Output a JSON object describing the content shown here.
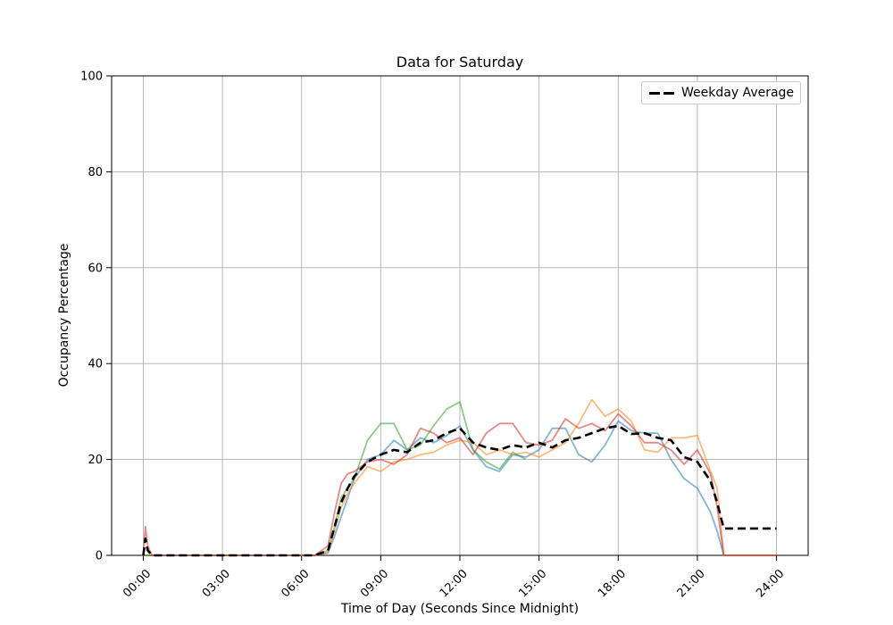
{
  "chart_data": {
    "type": "line",
    "title": "Data for Saturday",
    "xlabel": "Time of Day (Seconds Since Midnight)",
    "ylabel": "Occupancy Percentage",
    "ylim": [
      0,
      100
    ],
    "xlim_hours": [
      -1.2,
      25.2
    ],
    "yticks": [
      0,
      20,
      40,
      60,
      80,
      100
    ],
    "xticks": [
      {
        "hour": 0,
        "label": "00:00"
      },
      {
        "hour": 3,
        "label": "03:00"
      },
      {
        "hour": 6,
        "label": "06:00"
      },
      {
        "hour": 9,
        "label": "09:00"
      },
      {
        "hour": 12,
        "label": "12:00"
      },
      {
        "hour": 15,
        "label": "15:00"
      },
      {
        "hour": 18,
        "label": "18:00"
      },
      {
        "hour": 21,
        "label": "21:00"
      },
      {
        "hour": 24,
        "label": "24:00"
      }
    ],
    "grid": true,
    "grid_color": "#b0b0b0",
    "spine_color": "#000000",
    "legend": {
      "position": "upper right",
      "entries": [
        {
          "label": "Weekday Average",
          "style": "dashed",
          "color": "#000000"
        }
      ]
    },
    "x_hours": [
      0,
      0.08,
      0.17,
      0.33,
      0.5,
      1,
      1.5,
      2,
      2.5,
      3,
      3.5,
      4,
      4.5,
      5,
      5.5,
      6,
      6.5,
      7,
      7.25,
      7.5,
      7.75,
      8,
      8.5,
      9,
      9.5,
      10,
      10.5,
      11,
      11.5,
      12,
      12.5,
      13,
      13.5,
      14,
      14.5,
      15,
      15.5,
      16,
      16.5,
      17,
      17.5,
      18,
      18.5,
      19,
      19.5,
      20,
      20.5,
      21,
      21.5,
      21.75,
      22,
      22.5,
      23,
      23.5,
      24
    ],
    "series": [
      {
        "name": "trace-blue",
        "color": "#1f77b4",
        "opacity": 0.55,
        "width": 1.8,
        "dash": null,
        "values": [
          0,
          0,
          0,
          0,
          0,
          0,
          0,
          0,
          0,
          0,
          0,
          0,
          0,
          0,
          0,
          0,
          0,
          0.5,
          4,
          8,
          12,
          16,
          20,
          21,
          24,
          22,
          24.5,
          23.5,
          25,
          27,
          22,
          18.5,
          17.5,
          21,
          20.5,
          22,
          26.5,
          26.5,
          21,
          19.5,
          23,
          28,
          26,
          25.5,
          25.5,
          20,
          16,
          14,
          9,
          5,
          0,
          0,
          0,
          0,
          0
        ]
      },
      {
        "name": "trace-orange",
        "color": "#ff7f0e",
        "opacity": 0.55,
        "width": 1.8,
        "dash": null,
        "values": [
          0,
          0,
          0,
          0,
          0,
          0,
          0,
          0,
          0,
          0,
          0,
          0,
          0,
          0,
          0,
          0,
          0,
          0.5,
          5,
          10,
          13,
          15,
          18.5,
          17.5,
          19.5,
          20,
          21,
          21.5,
          23,
          24,
          23.5,
          21,
          22,
          21,
          21.5,
          20.5,
          22,
          23.5,
          27.5,
          32.5,
          29,
          30.5,
          28,
          22,
          21.5,
          24.5,
          24.5,
          25,
          17.5,
          14,
          0,
          0,
          0,
          0,
          0
        ]
      },
      {
        "name": "trace-green",
        "color": "#2ca02c",
        "opacity": 0.55,
        "width": 1.8,
        "dash": null,
        "values": [
          0,
          0,
          0,
          0,
          0,
          0,
          0,
          0,
          0,
          0,
          0,
          0,
          0,
          0,
          0,
          0,
          0,
          1,
          6,
          12,
          14,
          16,
          24,
          27.5,
          27.5,
          22,
          23,
          27,
          30.5,
          32,
          22,
          19.5,
          18,
          21.5,
          20,
          null,
          null,
          null,
          null,
          null,
          null,
          null,
          null,
          null,
          null,
          null,
          null,
          null,
          null,
          null,
          null,
          null,
          null,
          null,
          null
        ]
      },
      {
        "name": "trace-red",
        "color": "#d62728",
        "opacity": 0.55,
        "width": 1.8,
        "dash": null,
        "values": [
          0,
          6,
          2,
          0,
          0,
          0,
          0,
          0,
          0,
          0,
          0,
          0,
          0,
          0,
          0,
          0,
          0,
          2,
          9,
          15,
          17,
          17.5,
          19.5,
          20,
          19,
          21,
          26.5,
          25.5,
          23.5,
          24.5,
          21,
          25.5,
          27.5,
          27.5,
          23.5,
          23,
          24,
          28.5,
          26.5,
          27.5,
          26,
          29.5,
          27,
          23.5,
          23.5,
          22,
          19,
          22,
          17,
          10,
          0,
          0,
          0,
          0,
          0
        ]
      },
      {
        "name": "weekday-average",
        "color": "#000000",
        "opacity": 1,
        "width": 2.6,
        "dash": "9 5",
        "values": [
          0,
          3.5,
          1,
          0,
          0,
          0,
          0,
          0,
          0,
          0,
          0,
          0,
          0,
          0,
          0,
          0,
          0,
          1,
          6,
          11,
          14,
          16.5,
          19.5,
          21,
          22,
          21.5,
          23.5,
          24,
          25.5,
          26.5,
          23.5,
          22.5,
          22,
          23,
          22.5,
          23.5,
          22.5,
          24,
          24.5,
          25.5,
          26.5,
          27,
          25.3,
          25.5,
          24.5,
          24,
          20.5,
          19.5,
          15.5,
          11,
          5.6,
          5.6,
          5.6,
          5.6,
          5.6
        ]
      }
    ]
  }
}
